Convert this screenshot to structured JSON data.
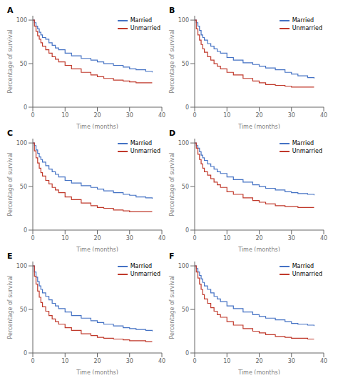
{
  "chart_data": [
    {
      "type": "step",
      "title": "A",
      "xlabel": "Time (months)",
      "ylabel": "Percentage of survival",
      "xlim": [
        0,
        40
      ],
      "ylim": [
        0,
        105
      ],
      "xticks": [
        0,
        10,
        20,
        30,
        40
      ],
      "yticks": [
        0,
        50,
        100
      ],
      "grid": false,
      "legend": "upper right",
      "x": [
        0,
        0.5,
        1,
        1.5,
        2,
        2.5,
        3,
        4,
        5,
        6,
        7,
        8,
        10,
        12,
        15,
        18,
        20,
        22,
        25,
        28,
        30,
        32,
        35,
        37
      ],
      "series": [
        {
          "name": "Married",
          "color": "#4472C4",
          "values": [
            100,
            97,
            93,
            90,
            86,
            83,
            80,
            78,
            74,
            71,
            68,
            66,
            62,
            59,
            56,
            54,
            52,
            50,
            48,
            46,
            44,
            43,
            41,
            40
          ]
        },
        {
          "name": "Unmarried",
          "color": "#C0392B",
          "values": [
            100,
            93,
            87,
            82,
            78,
            74,
            70,
            66,
            62,
            58,
            55,
            52,
            48,
            44,
            40,
            37,
            35,
            33,
            31,
            30,
            29,
            28,
            28,
            28
          ]
        }
      ]
    },
    {
      "type": "step",
      "title": "B",
      "xlabel": "Time (months)",
      "ylabel": "Percentage of survival",
      "xlim": [
        0,
        40
      ],
      "ylim": [
        0,
        105
      ],
      "xticks": [
        0,
        10,
        20,
        30,
        40
      ],
      "yticks": [
        0,
        50,
        100
      ],
      "grid": false,
      "legend": "upper right",
      "x": [
        0,
        0.5,
        1,
        1.5,
        2,
        2.5,
        3,
        4,
        5,
        6,
        7,
        8,
        10,
        12,
        15,
        18,
        20,
        22,
        25,
        28,
        30,
        32,
        35,
        37
      ],
      "series": [
        {
          "name": "Married",
          "color": "#4472C4",
          "values": [
            100,
            97,
            93,
            88,
            83,
            80,
            77,
            73,
            70,
            67,
            64,
            62,
            57,
            54,
            51,
            49,
            47,
            45,
            43,
            40,
            38,
            36,
            34,
            33
          ]
        },
        {
          "name": "Unmarried",
          "color": "#C0392B",
          "values": [
            100,
            90,
            83,
            77,
            72,
            67,
            63,
            58,
            54,
            50,
            47,
            44,
            40,
            37,
            33,
            30,
            28,
            26,
            25,
            24,
            23,
            23,
            23,
            23
          ]
        }
      ]
    },
    {
      "type": "step",
      "title": "C",
      "xlabel": "Time (months)",
      "ylabel": "Percentage of survival",
      "xlim": [
        0,
        40
      ],
      "ylim": [
        0,
        105
      ],
      "xticks": [
        0,
        10,
        20,
        30,
        40
      ],
      "yticks": [
        0,
        50,
        100
      ],
      "grid": false,
      "legend": "upper right",
      "x": [
        0,
        0.5,
        1,
        1.5,
        2,
        2.5,
        3,
        4,
        5,
        6,
        7,
        8,
        10,
        12,
        15,
        18,
        20,
        22,
        25,
        28,
        30,
        32,
        35,
        37
      ],
      "series": [
        {
          "name": "Married",
          "color": "#4472C4",
          "values": [
            100,
            97,
            92,
            88,
            84,
            81,
            78,
            74,
            70,
            67,
            64,
            61,
            57,
            54,
            51,
            49,
            47,
            45,
            43,
            41,
            40,
            38,
            37,
            36
          ]
        },
        {
          "name": "Unmarried",
          "color": "#C0392B",
          "values": [
            100,
            91,
            83,
            77,
            71,
            66,
            62,
            57,
            53,
            49,
            46,
            43,
            38,
            35,
            31,
            28,
            26,
            25,
            23,
            22,
            21,
            21,
            21,
            21
          ]
        }
      ]
    },
    {
      "type": "step",
      "title": "D",
      "xlabel": "Time (months)",
      "ylabel": "Percentage of survival",
      "xlim": [
        0,
        40
      ],
      "ylim": [
        0,
        105
      ],
      "xticks": [
        0,
        10,
        20,
        30,
        40
      ],
      "yticks": [
        0,
        50,
        100
      ],
      "grid": false,
      "legend": "upper right",
      "x": [
        0,
        0.5,
        1,
        1.5,
        2,
        2.5,
        3,
        4,
        5,
        6,
        7,
        8,
        10,
        12,
        15,
        18,
        20,
        22,
        25,
        28,
        30,
        32,
        35,
        37
      ],
      "series": [
        {
          "name": "Married",
          "color": "#4472C4",
          "values": [
            100,
            97,
            94,
            90,
            86,
            83,
            80,
            76,
            73,
            70,
            67,
            65,
            61,
            58,
            55,
            52,
            50,
            48,
            46,
            44,
            43,
            42,
            41,
            40
          ]
        },
        {
          "name": "Unmarried",
          "color": "#C0392B",
          "values": [
            100,
            94,
            87,
            81,
            76,
            71,
            67,
            63,
            59,
            55,
            52,
            49,
            44,
            41,
            37,
            34,
            32,
            30,
            28,
            27,
            27,
            26,
            26,
            26
          ]
        }
      ]
    },
    {
      "type": "step",
      "title": "E",
      "xlabel": "Time (months)",
      "ylabel": "Percentage of survival",
      "xlim": [
        0,
        40
      ],
      "ylim": [
        0,
        105
      ],
      "xticks": [
        0,
        10,
        20,
        30,
        40
      ],
      "yticks": [
        0,
        50,
        100
      ],
      "grid": false,
      "legend": "upper right",
      "x": [
        0,
        0.5,
        1,
        1.5,
        2,
        2.5,
        3,
        4,
        5,
        6,
        7,
        8,
        10,
        12,
        15,
        18,
        20,
        22,
        25,
        28,
        30,
        32,
        35,
        37
      ],
      "series": [
        {
          "name": "Married",
          "color": "#4472C4",
          "values": [
            100,
            93,
            87,
            82,
            77,
            73,
            69,
            65,
            61,
            57,
            54,
            51,
            47,
            43,
            40,
            37,
            35,
            33,
            31,
            29,
            28,
            27,
            26,
            25
          ]
        },
        {
          "name": "Unmarried",
          "color": "#C0392B",
          "values": [
            100,
            88,
            79,
            71,
            64,
            58,
            53,
            48,
            43,
            39,
            36,
            33,
            29,
            26,
            22,
            20,
            18,
            17,
            16,
            15,
            14,
            14,
            13,
            13
          ]
        }
      ]
    },
    {
      "type": "step",
      "title": "F",
      "xlabel": "Time (months)",
      "ylabel": "Percentage of survival",
      "xlim": [
        0,
        40
      ],
      "ylim": [
        0,
        105
      ],
      "xticks": [
        0,
        10,
        20,
        30,
        40
      ],
      "yticks": [
        0,
        50,
        100
      ],
      "grid": false,
      "legend": "upper right",
      "x": [
        0,
        0.5,
        1,
        1.5,
        2,
        2.5,
        3,
        4,
        5,
        6,
        7,
        8,
        10,
        12,
        15,
        18,
        20,
        22,
        25,
        28,
        30,
        32,
        35,
        37
      ],
      "series": [
        {
          "name": "Married",
          "color": "#4472C4",
          "values": [
            100,
            97,
            93,
            89,
            85,
            81,
            77,
            73,
            69,
            65,
            62,
            59,
            54,
            51,
            47,
            44,
            42,
            40,
            38,
            36,
            34,
            33,
            32,
            31
          ]
        },
        {
          "name": "Unmarried",
          "color": "#C0392B",
          "values": [
            100,
            93,
            86,
            79,
            73,
            67,
            62,
            57,
            52,
            48,
            44,
            41,
            36,
            32,
            28,
            25,
            23,
            21,
            19,
            18,
            17,
            17,
            16,
            16
          ]
        }
      ]
    }
  ]
}
